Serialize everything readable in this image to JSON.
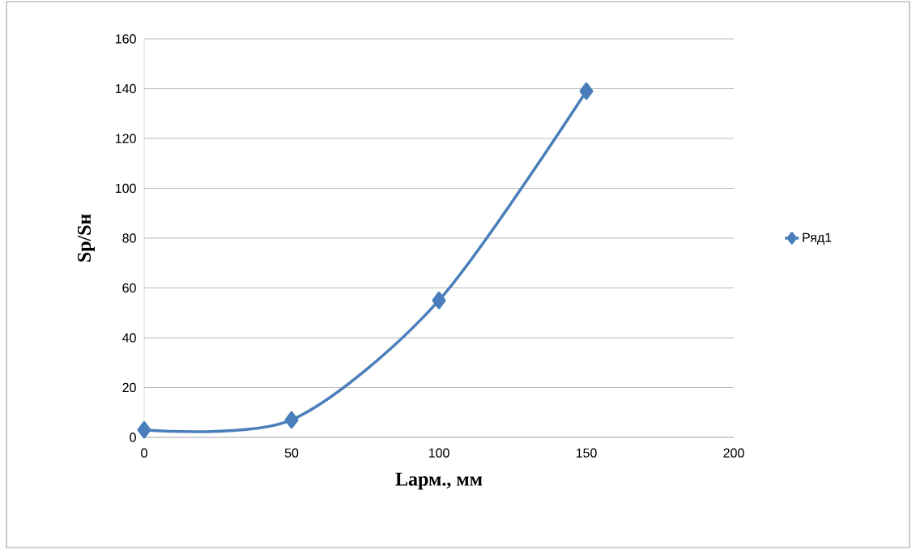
{
  "chart_data": {
    "type": "line",
    "xlabel": "Lарм., мм",
    "ylabel": "Sр/Sн",
    "x": [
      0,
      50,
      100,
      150
    ],
    "series": [
      {
        "name": "Ряд1",
        "color": "#4a7ebb",
        "values": [
          3,
          7,
          55,
          139
        ]
      }
    ],
    "xlim": [
      0,
      200
    ],
    "xticks": [
      0,
      50,
      100,
      150,
      200
    ],
    "ylim": [
      0,
      160
    ],
    "yticks": [
      0,
      20,
      40,
      60,
      80,
      100,
      120,
      140,
      160
    ],
    "grid": "y",
    "legend": "right",
    "marker": "diamond",
    "line_style": "solid"
  }
}
